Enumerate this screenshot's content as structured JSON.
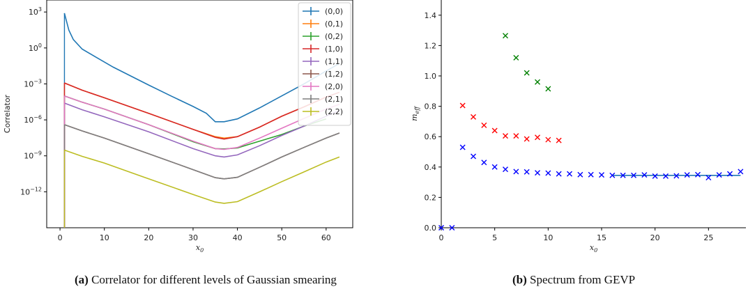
{
  "captions": {
    "a_label": "(a)",
    "a_text": "Correlator for different levels of Gaussian smearing",
    "b_label": "(b)",
    "b_text": "Spectrum from GEVP"
  },
  "chart_data": [
    {
      "type": "line",
      "ylabel": "Correlator",
      "xlabel": "x0",
      "yscale": "log",
      "xlim": [
        -3,
        66
      ],
      "ylim": [
        1e-15,
        10000.0
      ],
      "xticks": [
        0,
        10,
        20,
        30,
        40,
        50,
        60
      ],
      "yticks": [
        {
          "v": 1000.0,
          "t": "10^3"
        },
        {
          "v": 1,
          "t": "10^0"
        },
        {
          "v": 0.001,
          "t": "10^-3"
        },
        {
          "v": 1e-06,
          "t": "10^-6"
        },
        {
          "v": 1e-09,
          "t": "10^-9"
        },
        {
          "v": 1e-12,
          "t": "10^-12"
        }
      ],
      "legend_position": "top-right",
      "series": [
        {
          "name": "(0,0)",
          "color": "#1f77b4",
          "points": [
            [
              1,
              800
            ],
            [
              2,
              30
            ],
            [
              3,
              5
            ],
            [
              5,
              0.8
            ],
            [
              8,
              0.18
            ],
            [
              12,
              0.025
            ],
            [
              20,
              0.0008
            ],
            [
              25,
              0.0001
            ],
            [
              30,
              1.3e-05
            ],
            [
              33,
              3.5e-06
            ],
            [
              35,
              7e-07
            ],
            [
              37,
              7e-07
            ],
            [
              40,
              1.2e-06
            ],
            [
              45,
              1e-05
            ],
            [
              50,
              0.0001
            ],
            [
              55,
              0.001
            ],
            [
              60,
              0.012
            ],
            [
              63,
              0.05
            ]
          ]
        },
        {
          "name": "(0,1)",
          "color": "#ff7f0e",
          "points": [
            [
              1,
              0.0012
            ],
            [
              5,
              0.0003
            ],
            [
              10,
              7e-05
            ],
            [
              20,
              3.5e-06
            ],
            [
              30,
              1.6e-07
            ],
            [
              35,
              4e-08
            ],
            [
              37,
              3e-08
            ],
            [
              40,
              4e-08
            ],
            [
              45,
              2.5e-07
            ],
            [
              50,
              2e-06
            ],
            [
              55,
              1.2e-05
            ],
            [
              60,
              8e-05
            ]
          ]
        },
        {
          "name": "(0,2)",
          "color": "#2ca02c",
          "points": [
            [
              1,
              0.0001
            ],
            [
              5,
              3e-05
            ],
            [
              10,
              8e-06
            ],
            [
              20,
              4e-07
            ],
            [
              30,
              1.5e-08
            ],
            [
              35,
              4e-09
            ],
            [
              37,
              3.8e-09
            ],
            [
              40,
              4.5e-09
            ],
            [
              43,
              1e-08
            ],
            [
              50,
              6e-08
            ],
            [
              55,
              3e-07
            ],
            [
              60,
              1.2e-06
            ]
          ]
        },
        {
          "name": "(1,0)",
          "color": "#d62728",
          "points": [
            [
              1,
              0.0012
            ],
            [
              5,
              0.0003
            ],
            [
              10,
              7e-05
            ],
            [
              20,
              3.5e-06
            ],
            [
              30,
              1.6e-07
            ],
            [
              35,
              3.5e-08
            ],
            [
              37,
              2.5e-08
            ],
            [
              40,
              4e-08
            ],
            [
              45,
              2.5e-07
            ],
            [
              50,
              2e-06
            ],
            [
              55,
              1.2e-05
            ],
            [
              60,
              8e-05
            ],
            [
              63,
              0.0002
            ]
          ]
        },
        {
          "name": "(1,1)",
          "color": "#9467bd",
          "points": [
            [
              1,
              2.5e-05
            ],
            [
              5,
              7e-06
            ],
            [
              10,
              1.8e-06
            ],
            [
              20,
              1e-07
            ],
            [
              30,
              4e-09
            ],
            [
              35,
              1e-09
            ],
            [
              37,
              8e-10
            ],
            [
              40,
              1.2e-09
            ],
            [
              45,
              7e-09
            ],
            [
              50,
              5e-08
            ],
            [
              55,
              3e-07
            ],
            [
              60,
              2e-06
            ],
            [
              63,
              6e-06
            ]
          ]
        },
        {
          "name": "(1,2)",
          "color": "#8c564b",
          "points": [
            [
              1,
              4e-07
            ],
            [
              5,
              1.2e-07
            ],
            [
              10,
              3e-08
            ],
            [
              20,
              1.5e-09
            ],
            [
              30,
              7e-11
            ],
            [
              35,
              1.5e-11
            ],
            [
              37,
              1.2e-11
            ],
            [
              40,
              1.6e-11
            ],
            [
              45,
              1.1e-10
            ],
            [
              50,
              8e-10
            ],
            [
              55,
              5e-09
            ],
            [
              60,
              3e-08
            ],
            [
              63,
              8e-08
            ]
          ]
        },
        {
          "name": "(2,0)",
          "color": "#e377c2",
          "points": [
            [
              1,
              0.0001
            ],
            [
              5,
              3e-05
            ],
            [
              10,
              8e-06
            ],
            [
              20,
              4e-07
            ],
            [
              30,
              1.7e-08
            ],
            [
              35,
              4e-09
            ],
            [
              37,
              3.5e-09
            ],
            [
              40,
              5e-09
            ],
            [
              45,
              3e-08
            ],
            [
              50,
              2e-07
            ],
            [
              55,
              1.3e-06
            ],
            [
              60,
              8e-06
            ],
            [
              63,
              2e-05
            ]
          ]
        },
        {
          "name": "(2,1)",
          "color": "#7f7f7f",
          "points": [
            [
              1,
              4e-07
            ],
            [
              5,
              1.2e-07
            ],
            [
              10,
              3e-08
            ],
            [
              20,
              1.5e-09
            ],
            [
              30,
              7e-11
            ],
            [
              35,
              1.5e-11
            ],
            [
              37,
              1.2e-11
            ],
            [
              40,
              1.6e-11
            ],
            [
              45,
              1.1e-10
            ],
            [
              50,
              8e-10
            ],
            [
              55,
              5e-09
            ],
            [
              60,
              3e-08
            ],
            [
              63,
              8e-08
            ]
          ]
        },
        {
          "name": "(2,2)",
          "color": "#bcbd22",
          "points": [
            [
              1,
              3e-09
            ],
            [
              5,
              9e-10
            ],
            [
              10,
              2.5e-10
            ],
            [
              20,
              1.2e-11
            ],
            [
              30,
              6e-13
            ],
            [
              35,
              1.4e-13
            ],
            [
              37,
              1.1e-13
            ],
            [
              40,
              1.5e-13
            ],
            [
              45,
              1e-12
            ],
            [
              50,
              7e-12
            ],
            [
              55,
              4.5e-11
            ],
            [
              60,
              3e-10
            ],
            [
              63,
              8e-10
            ]
          ]
        }
      ]
    },
    {
      "type": "scatter",
      "ylabel": "m_eff",
      "xlabel": "x0",
      "xlim": [
        0,
        28.5
      ],
      "ylim": [
        0,
        1.5
      ],
      "xticks": [
        0,
        5,
        10,
        15,
        20,
        25
      ],
      "yticks": [
        0.0,
        0.2,
        0.4,
        0.6,
        0.8,
        1.0,
        1.2,
        1.4
      ],
      "series": [
        {
          "color": "#0000ff",
          "points": [
            [
              0,
              0.0
            ],
            [
              1,
              0.0
            ],
            [
              2,
              0.53
            ],
            [
              3,
              0.47
            ],
            [
              4,
              0.43
            ],
            [
              5,
              0.4
            ],
            [
              6,
              0.385
            ],
            [
              7,
              0.37
            ],
            [
              8,
              0.368
            ],
            [
              9,
              0.362
            ],
            [
              10,
              0.36
            ],
            [
              11,
              0.355
            ],
            [
              12,
              0.355
            ],
            [
              13,
              0.35
            ],
            [
              14,
              0.35
            ],
            [
              15,
              0.348
            ],
            [
              16,
              0.345
            ],
            [
              17,
              0.345
            ],
            [
              18,
              0.345
            ],
            [
              19,
              0.348
            ],
            [
              20,
              0.34
            ],
            [
              21,
              0.34
            ],
            [
              22,
              0.342
            ],
            [
              23,
              0.348
            ],
            [
              24,
              0.35
            ],
            [
              25,
              0.33
            ],
            [
              26,
              0.348
            ],
            [
              27,
              0.355
            ],
            [
              28,
              0.37
            ]
          ]
        },
        {
          "color": "#ff0000",
          "points": [
            [
              2,
              0.805
            ],
            [
              3,
              0.73
            ],
            [
              4,
              0.675
            ],
            [
              5,
              0.64
            ],
            [
              6,
              0.605
            ],
            [
              7,
              0.605
            ],
            [
              8,
              0.585
            ],
            [
              9,
              0.595
            ],
            [
              10,
              0.58
            ],
            [
              11,
              0.575
            ]
          ]
        },
        {
          "color": "#008000",
          "points": [
            [
              6,
              1.265
            ],
            [
              7,
              1.12
            ],
            [
              8,
              1.02
            ],
            [
              9,
              0.96
            ],
            [
              10,
              0.915
            ]
          ]
        }
      ],
      "fit": {
        "color": "#1f77b4",
        "x": [
          16,
          28
        ],
        "y": 0.345
      }
    }
  ]
}
